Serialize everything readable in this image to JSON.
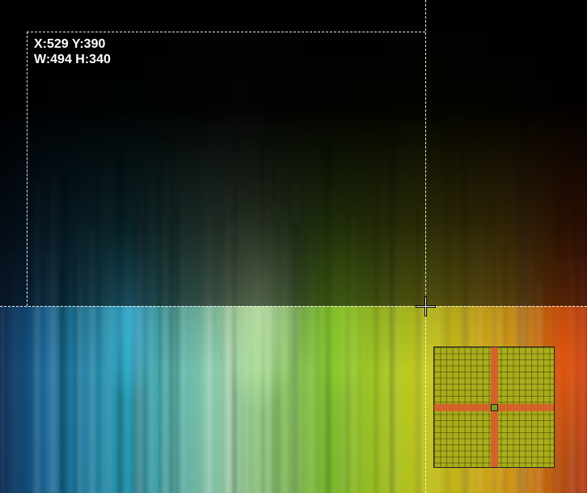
{
  "capture": {
    "position_readout": "X:529 Y:390",
    "size_readout": "W:494 H:340"
  },
  "icons": {
    "cursor": "crosshair-icon",
    "magnifier": "magnifier-loupe"
  },
  "colors": {
    "guide_line": "#ffffff",
    "magnifier_highlight": "#d6602a",
    "magnifier_base": "#a9ad1b"
  }
}
